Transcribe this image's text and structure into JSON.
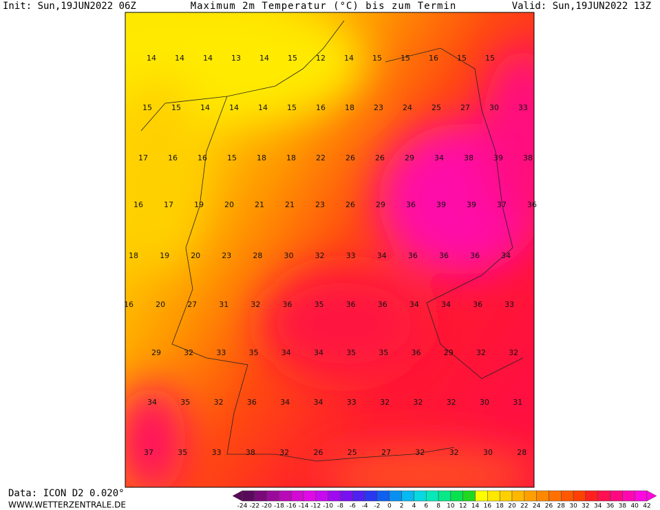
{
  "header": {
    "init": "Init: Sun,19JUN2022 06Z",
    "title": "Maximum 2m Temperatur (°C) bis zum Termin",
    "valid": "Valid: Sun,19JUN2022 13Z"
  },
  "map": {
    "rows": [
      [
        "14",
        "14",
        "14",
        "13",
        "14",
        "15",
        "12",
        "14",
        "15",
        "15",
        "16",
        "15",
        "15"
      ],
      [
        "15",
        "15",
        "14",
        "14",
        "14",
        "15",
        "16",
        "18",
        "23",
        "24",
        "25",
        "27",
        "30",
        "33"
      ],
      [
        "17",
        "16",
        "16",
        "15",
        "18",
        "18",
        "22",
        "26",
        "26",
        "29",
        "34",
        "38",
        "39",
        "38"
      ],
      [
        "16",
        "17",
        "19",
        "20",
        "21",
        "21",
        "23",
        "26",
        "29",
        "36",
        "39",
        "39",
        "37",
        "36"
      ],
      [
        "18",
        "19",
        "20",
        "23",
        "28",
        "30",
        "32",
        "33",
        "34",
        "36",
        "36",
        "36",
        "34"
      ],
      [
        "16",
        "20",
        "27",
        "31",
        "32",
        "36",
        "35",
        "36",
        "36",
        "34",
        "34",
        "36",
        "33"
      ],
      [
        "29",
        "32",
        "33",
        "35",
        "34",
        "34",
        "35",
        "35",
        "36",
        "29",
        "32",
        "32"
      ],
      [
        "34",
        "35",
        "32",
        "36",
        "34",
        "34",
        "33",
        "32",
        "32",
        "32",
        "30",
        "31"
      ],
      [
        "37",
        "35",
        "33",
        "38",
        "32",
        "26",
        "25",
        "27",
        "32",
        "32",
        "30",
        "28"
      ]
    ]
  },
  "legend": {
    "labels": [
      -24,
      -22,
      -20,
      -18,
      -16,
      -14,
      -12,
      -10,
      -8,
      -6,
      -4,
      -2,
      0,
      2,
      4,
      6,
      8,
      10,
      12,
      14,
      16,
      18,
      20,
      22,
      24,
      26,
      28,
      30,
      32,
      34,
      36,
      38,
      40,
      42
    ],
    "colors": [
      "#5a0a5a",
      "#7a0a7a",
      "#9a0a9a",
      "#b80ab8",
      "#d20ad2",
      "#e00ae6",
      "#c80af0",
      "#a00af0",
      "#7810f0",
      "#5020f0",
      "#2838f0",
      "#1060f0",
      "#0890f0",
      "#08b8f0",
      "#08d8e0",
      "#08e8b8",
      "#08e888",
      "#08e050",
      "#20d820",
      "#ffff00",
      "#ffe800",
      "#ffd000",
      "#ffb800",
      "#ffa000",
      "#ff8800",
      "#ff7000",
      "#ff5800",
      "#ff4000",
      "#ff2020",
      "#ff1050",
      "#ff0880",
      "#ff08b0",
      "#ff08e0"
    ]
  },
  "footer": {
    "data": "Data: ICON D2 0.020°",
    "site": "WWW.WETTERZENTRALE.DE"
  }
}
